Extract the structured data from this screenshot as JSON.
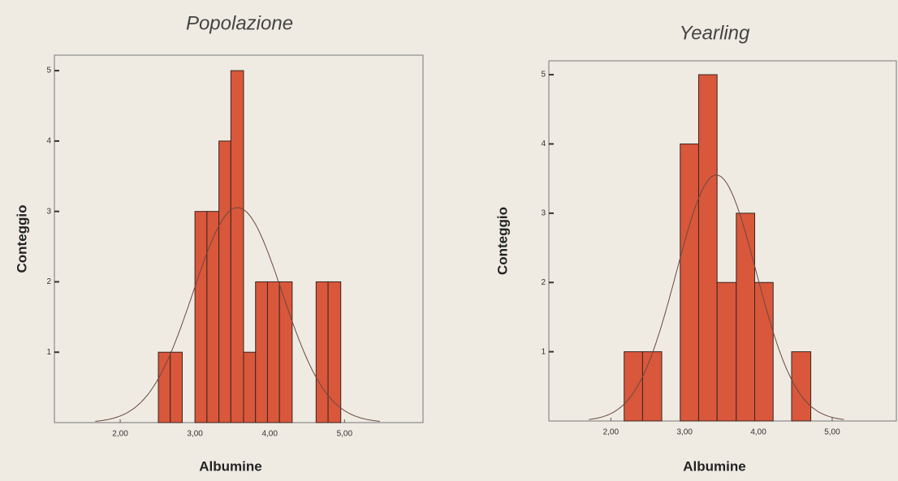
{
  "chart_data": [
    {
      "type": "histogram",
      "title": "Popolazione",
      "xlabel": "Albumine",
      "ylabel": "Conteggio",
      "bins": [
        2.51,
        2.67,
        2.83,
        3.0,
        3.16,
        3.32,
        3.48,
        3.65,
        3.81,
        3.97,
        4.13,
        4.3,
        4.46,
        4.62,
        4.78,
        4.95
      ],
      "counts": [
        1,
        1,
        0,
        3,
        3,
        4,
        5,
        1,
        2,
        2,
        2,
        0,
        0,
        2,
        2
      ],
      "color": "#d9573b",
      "curve": {
        "mean": 3.57,
        "sd": 0.595
      },
      "xlim": [
        1.12,
        6.05
      ],
      "ylim": [
        0,
        5.22
      ],
      "xticks": [
        {
          "value": 2,
          "label": "2,00"
        },
        {
          "value": 3,
          "label": "3,00"
        },
        {
          "value": 4,
          "label": "4,00"
        },
        {
          "value": 5,
          "label": "5,00"
        }
      ],
      "yticks": [
        1,
        2,
        3,
        4,
        5
      ]
    },
    {
      "type": "histogram",
      "title": "Yearling",
      "xlabel": "Albumine",
      "ylabel": "Conteggio",
      "bins": [
        2.18,
        2.43,
        2.69,
        2.94,
        3.19,
        3.44,
        3.7,
        3.95,
        4.2,
        4.45,
        4.71
      ],
      "counts": [
        1,
        1,
        0,
        4,
        5,
        2,
        3,
        2,
        0,
        1
      ],
      "color": "#d9573b",
      "curve": {
        "mean": 3.43,
        "sd": 0.54
      },
      "xlim": [
        1.16,
        5.87
      ],
      "ylim": [
        0,
        5.2
      ],
      "xticks": [
        {
          "value": 2,
          "label": "2,00"
        },
        {
          "value": 3,
          "label": "3,00"
        },
        {
          "value": 4,
          "label": "4,00"
        },
        {
          "value": 5,
          "label": "5,00"
        }
      ],
      "yticks": [
        1,
        2,
        3,
        4,
        5
      ]
    }
  ]
}
